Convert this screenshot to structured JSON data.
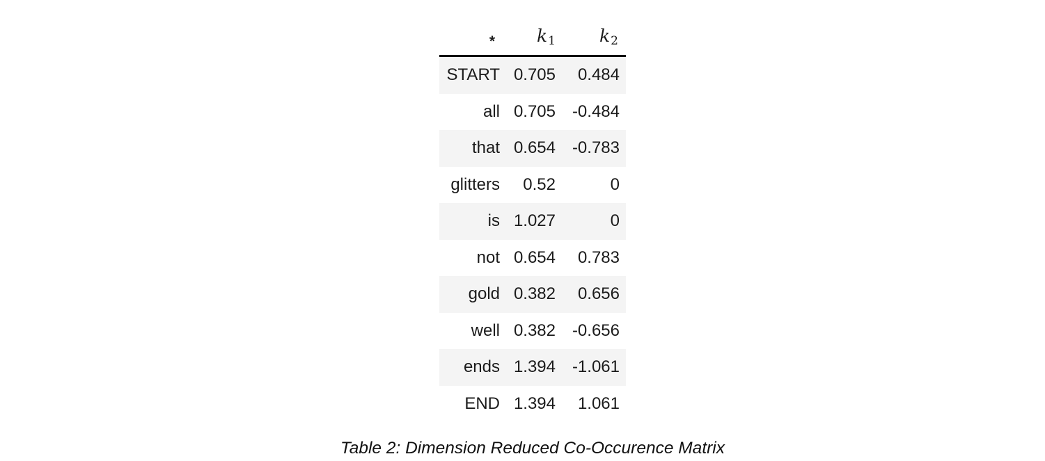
{
  "table": {
    "header": {
      "star": "*",
      "k1": {
        "base": "k",
        "sub": "1"
      },
      "k2": {
        "base": "k",
        "sub": "2"
      }
    },
    "rows": [
      {
        "label": "START",
        "k1": "0.705",
        "k2": "0.484"
      },
      {
        "label": "all",
        "k1": "0.705",
        "k2": "-0.484"
      },
      {
        "label": "that",
        "k1": "0.654",
        "k2": "-0.783"
      },
      {
        "label": "glitters",
        "k1": "0.52",
        "k2": "0"
      },
      {
        "label": "is",
        "k1": "1.027",
        "k2": "0"
      },
      {
        "label": "not",
        "k1": "0.654",
        "k2": "0.783"
      },
      {
        "label": "gold",
        "k1": "0.382",
        "k2": "0.656"
      },
      {
        "label": "well",
        "k1": "0.382",
        "k2": "-0.656"
      },
      {
        "label": "ends",
        "k1": "1.394",
        "k2": "-1.061"
      },
      {
        "label": "END",
        "k1": "1.394",
        "k2": "1.061"
      }
    ]
  },
  "caption": "Table 2: Dimension Reduced Co-Occurence Matrix",
  "colors": {
    "stripe": "#f4f4f4",
    "rule": "#000000",
    "text": "#1b1b1b"
  }
}
